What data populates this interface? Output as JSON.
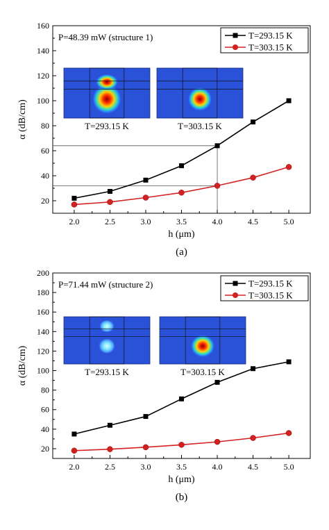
{
  "chart_data": [
    {
      "type": "line",
      "annotation": "P=48.39 mW (structure 1)",
      "xlabel": "h (μm)",
      "ylabel": "α (dB/cm)",
      "xlim": [
        1.7,
        5.3
      ],
      "ylim": [
        10,
        160
      ],
      "x_ticks": [
        "2.0",
        "2.5",
        "3.0",
        "3.5",
        "4.0",
        "4.5",
        "5.0"
      ],
      "y_ticks": [
        "20",
        "40",
        "60",
        "80",
        "100",
        "120",
        "140",
        "160"
      ],
      "legend_position": "top-right",
      "x": [
        2.0,
        2.5,
        3.0,
        3.5,
        4.0,
        4.5,
        5.0
      ],
      "series": [
        {
          "name": "T=293.15 K",
          "color": "#000000",
          "marker": "square",
          "values": [
            22,
            27.5,
            36.5,
            48,
            64,
            83,
            100
          ]
        },
        {
          "name": "T=303.15 K",
          "color": "#d62020",
          "marker": "circle",
          "values": [
            17,
            19,
            22.5,
            26.5,
            32,
            38.5,
            47
          ]
        }
      ],
      "guide_lines": {
        "x": 4.0,
        "y_values": [
          64,
          32
        ]
      },
      "insets": [
        {
          "label": "T=293.15 K",
          "mode": "double"
        },
        {
          "label": "T=303.15 K",
          "mode": "single"
        }
      ],
      "caption": "(a)"
    },
    {
      "type": "line",
      "annotation": "P=71.44 mW (structure 2)",
      "xlabel": "h (μm)",
      "ylabel": "α (dB/cm)",
      "xlim": [
        1.7,
        5.3
      ],
      "ylim": [
        10,
        200
      ],
      "x_ticks": [
        "2.0",
        "2.5",
        "3.0",
        "3.5",
        "4.0",
        "4.5",
        "5.0"
      ],
      "y_ticks": [
        "20",
        "40",
        "60",
        "80",
        "100",
        "120",
        "140",
        "160",
        "180",
        "200"
      ],
      "legend_position": "top-right",
      "x": [
        2.0,
        2.5,
        3.0,
        3.5,
        4.0,
        4.5,
        5.0
      ],
      "series": [
        {
          "name": "T=293.15 K",
          "color": "#000000",
          "marker": "square",
          "values": [
            35,
            44,
            53,
            71,
            88,
            102,
            109
          ]
        },
        {
          "name": "T=303.15 K",
          "color": "#d62020",
          "marker": "circle",
          "values": [
            18,
            19.5,
            21.5,
            24,
            27,
            31,
            36
          ]
        }
      ],
      "insets": [
        {
          "label": "T=293.15 K",
          "mode": "split"
        },
        {
          "label": "T=303.15 K",
          "mode": "single"
        }
      ],
      "caption": "(b)"
    }
  ]
}
